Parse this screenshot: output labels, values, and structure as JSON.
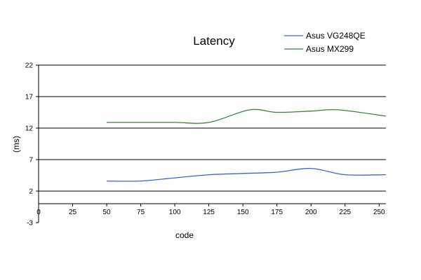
{
  "chart_data": {
    "type": "line",
    "title": "Latency",
    "xlabel": "code",
    "ylabel": "(ms)",
    "xlim": [
      0,
      255
    ],
    "ylim": [
      -3,
      22
    ],
    "xticks": [
      0,
      25,
      50,
      75,
      100,
      125,
      150,
      175,
      200,
      225,
      250
    ],
    "yticks": [
      -3,
      2,
      7,
      12,
      17,
      22
    ],
    "grid": "horizontal",
    "legend": "top-right",
    "series": [
      {
        "name": "Asus VG248QE",
        "color": "#3366dd",
        "x": [
          50,
          75,
          100,
          125,
          150,
          175,
          200,
          225,
          255
        ],
        "y": [
          3.6,
          3.6,
          4.1,
          4.6,
          4.8,
          5.0,
          5.6,
          4.6,
          4.6
        ]
      },
      {
        "name": "Asus MX299",
        "color": "#2e8b2e",
        "x": [
          50,
          75,
          100,
          125,
          155,
          175,
          200,
          220,
          255
        ],
        "y": [
          12.9,
          12.9,
          12.9,
          12.9,
          14.9,
          14.5,
          14.7,
          14.9,
          13.9
        ]
      }
    ]
  }
}
